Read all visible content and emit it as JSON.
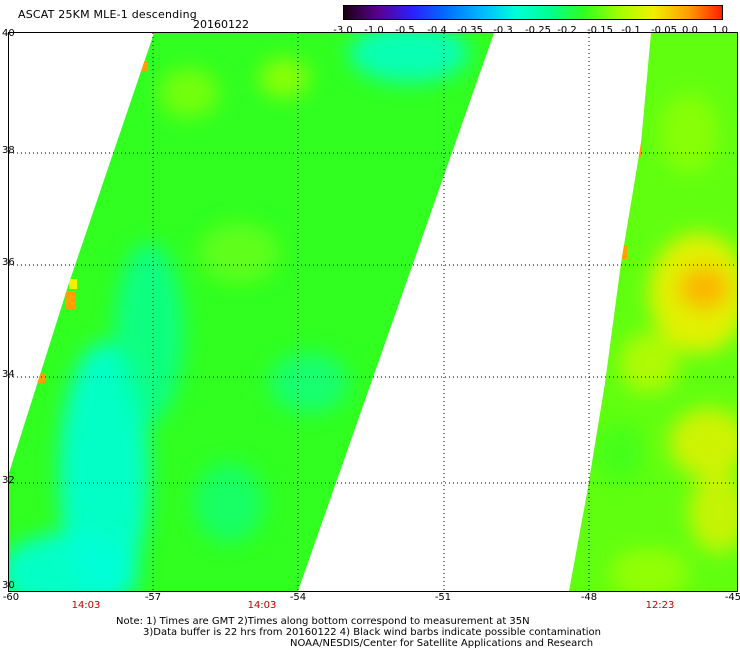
{
  "title": "ASCAT 25KM MLE-1 descending",
  "date": "20160122",
  "colorbar": {
    "ticks": [
      "-3.0",
      "-1.0",
      "-0.5",
      "-0.4",
      "-0.35",
      "-0.3",
      "-0.25",
      "-0.2",
      "-0.15",
      "-0.1",
      "-0.05",
      "0.0",
      "1.0"
    ],
    "colors": [
      "#1a0010",
      "#5a0090",
      "#2a20ff",
      "#0070ff",
      "#00b8ff",
      "#00ffd8",
      "#00ff90",
      "#30ff20",
      "#a0ff00",
      "#f0f000",
      "#ffa000",
      "#ff2000"
    ]
  },
  "map": {
    "lat_labels": [
      "40",
      "38",
      "36",
      "34",
      "32",
      "30"
    ],
    "lon_labels": [
      "-60",
      "-57",
      "-54",
      "-51",
      "-48",
      "-45"
    ],
    "time_labels": [
      "14:03",
      "14:03",
      "12:23"
    ],
    "colors": {
      "cyan": "#00ffd8",
      "green": "#30ff20",
      "yellow_green": "#a0ff00",
      "yellow": "#f0f000",
      "orange": "#ffa000"
    }
  },
  "notes": {
    "line1": "Note: 1) Times are GMT 2)Times along bottom correspond to measurement at 35N",
    "line2": "3)Data buffer is 22 hrs from 20160122 4) Black wind barbs indicate possible contamination",
    "line3": "NOAA/NESDIS/Center for Satellite Applications and Research"
  }
}
